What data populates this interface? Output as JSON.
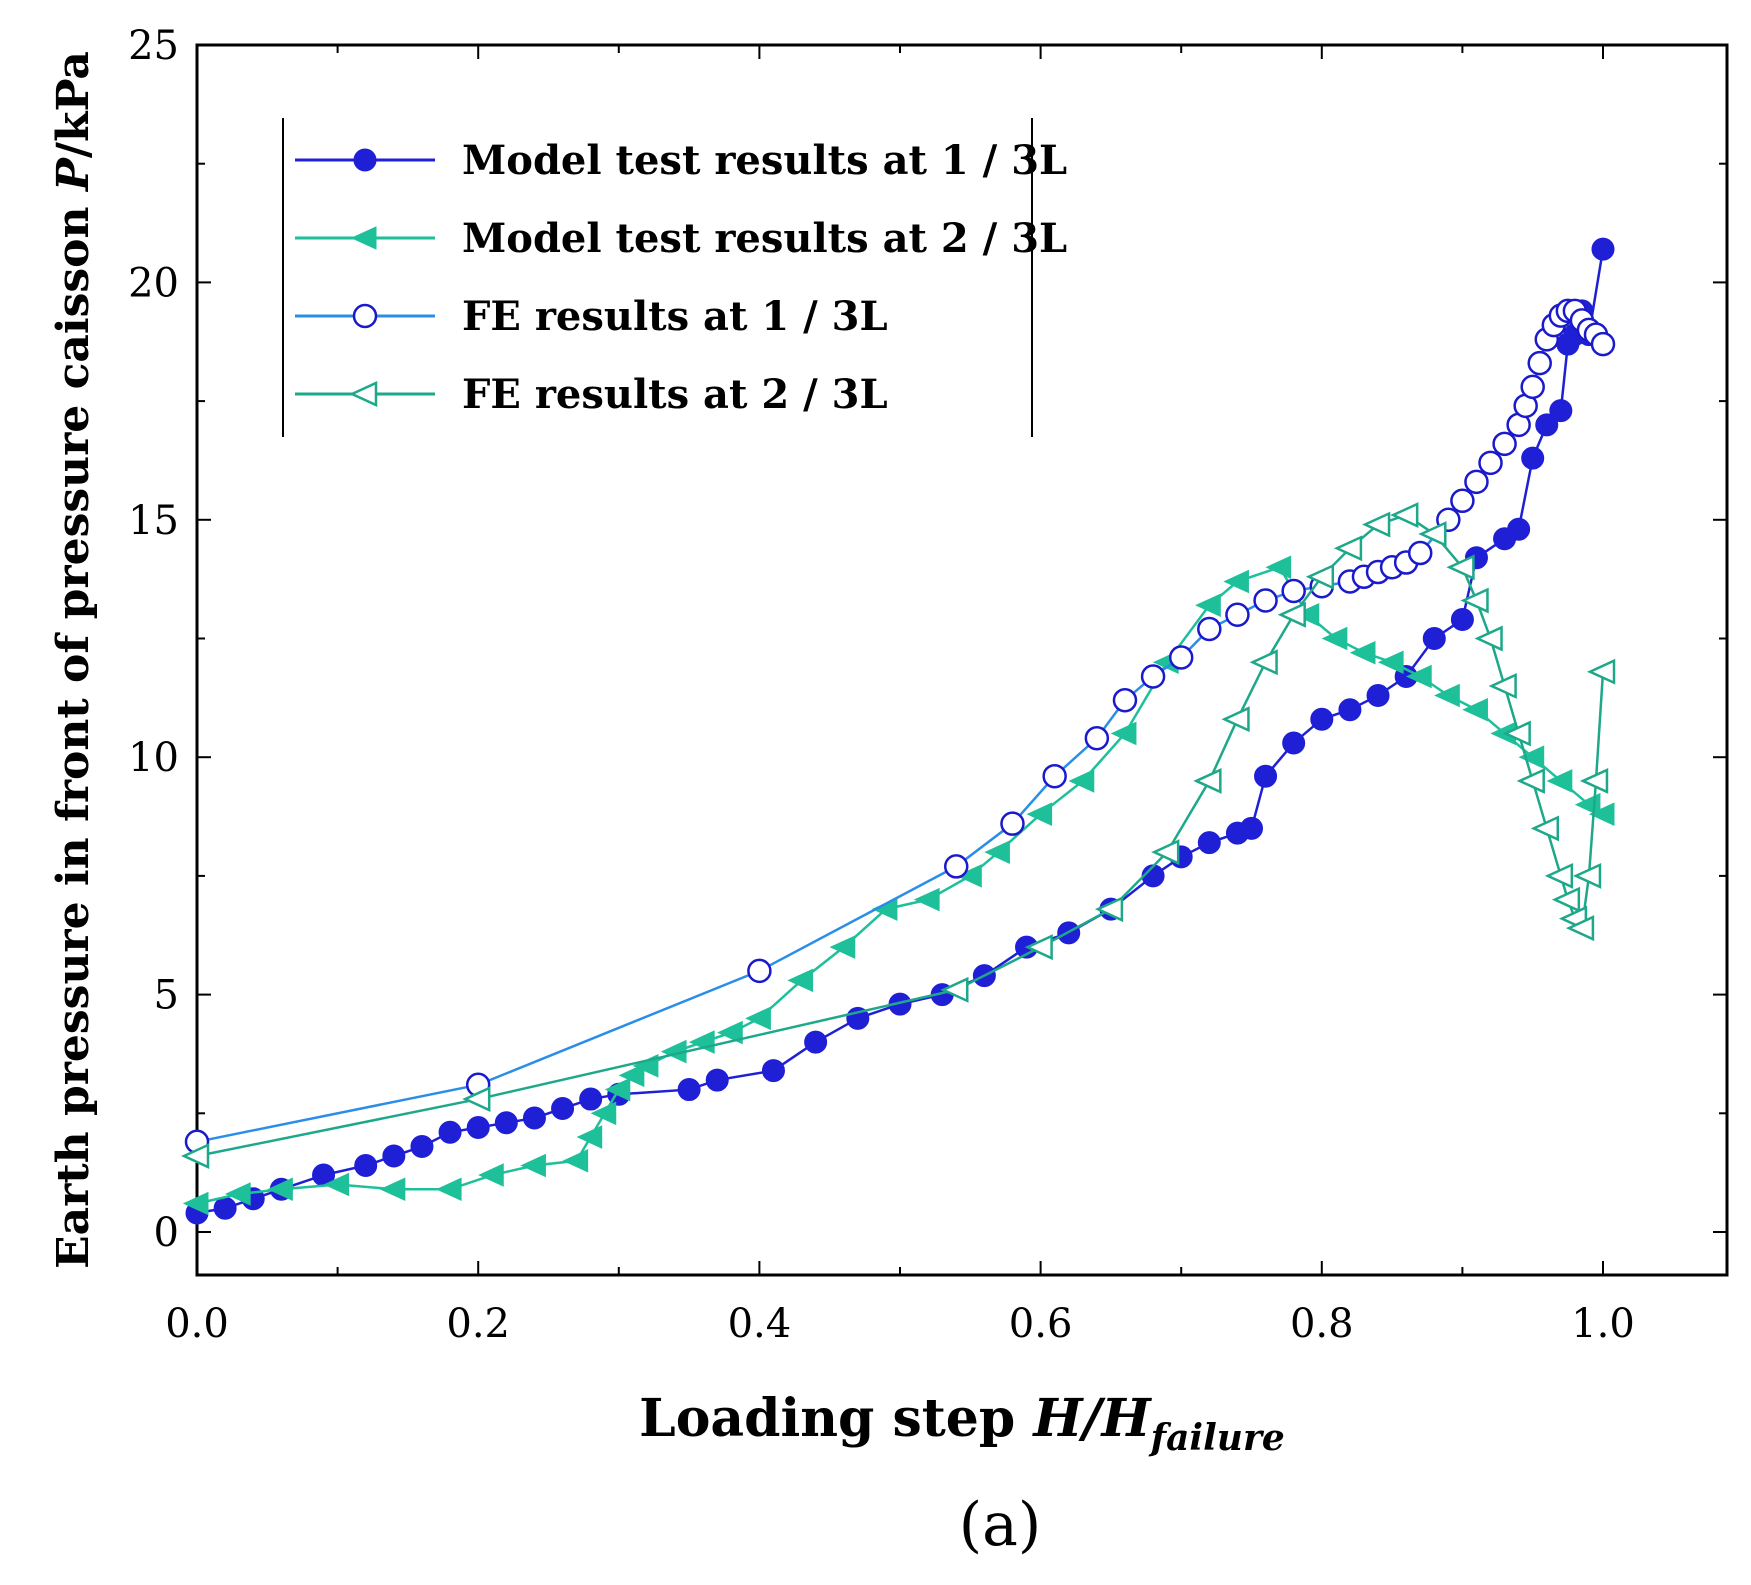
{
  "chart_data": {
    "type": "line",
    "title": "",
    "panel_label": "(a)",
    "xlabel": {
      "prefix": "Loading step ",
      "var": "H/H",
      "sub": "failure"
    },
    "ylabel": {
      "prefix": "Earth pressure in front of pressure caisson  ",
      "var": "P",
      "suffix": "/kPa"
    },
    "xlim": [
      0.0,
      1.1
    ],
    "ylim": [
      -1,
      25
    ],
    "xticks": [
      0.0,
      0.2,
      0.4,
      0.6,
      0.8,
      1.0
    ],
    "xtick_labels": [
      "0.0",
      "0.2",
      "0.4",
      "0.6",
      "0.8",
      "1.0"
    ],
    "yticks": [
      0,
      5,
      10,
      15,
      20,
      25
    ],
    "ytick_labels": [
      "0",
      "5",
      "10",
      "15",
      "20",
      "25"
    ],
    "grid": false,
    "legend_position": "top-left",
    "series": [
      {
        "name": "Model test results at 1 / 3L",
        "color": "#1f1fd6",
        "marker": "circle-filled",
        "x": [
          0.0,
          0.02,
          0.04,
          0.06,
          0.09,
          0.12,
          0.14,
          0.16,
          0.18,
          0.2,
          0.22,
          0.24,
          0.26,
          0.28,
          0.3,
          0.35,
          0.37,
          0.41,
          0.44,
          0.47,
          0.5,
          0.53,
          0.56,
          0.59,
          0.62,
          0.65,
          0.68,
          0.7,
          0.72,
          0.74,
          0.75,
          0.76,
          0.78,
          0.8,
          0.82,
          0.84,
          0.86,
          0.88,
          0.9,
          0.91,
          0.93,
          0.94,
          0.95,
          0.96,
          0.97,
          0.975,
          0.98,
          0.985,
          0.99,
          1.0
        ],
        "y": [
          0.4,
          0.5,
          0.7,
          0.9,
          1.2,
          1.4,
          1.6,
          1.8,
          2.1,
          2.2,
          2.3,
          2.4,
          2.6,
          2.8,
          2.9,
          3.0,
          3.2,
          3.4,
          4.0,
          4.5,
          4.8,
          5.0,
          5.4,
          6.0,
          6.3,
          6.8,
          7.5,
          7.9,
          8.2,
          8.4,
          8.5,
          9.6,
          10.3,
          10.8,
          11.0,
          11.3,
          11.7,
          12.5,
          12.9,
          14.2,
          14.6,
          14.8,
          16.3,
          17.0,
          17.3,
          18.7,
          18.9,
          19.4,
          18.9,
          20.7
        ]
      },
      {
        "name": "Model test results at 2 / 3L",
        "color": "#1ec09a",
        "marker": "triangle-left-filled",
        "x": [
          0.0,
          0.03,
          0.06,
          0.1,
          0.14,
          0.18,
          0.21,
          0.24,
          0.27,
          0.28,
          0.29,
          0.3,
          0.31,
          0.32,
          0.34,
          0.36,
          0.38,
          0.4,
          0.43,
          0.46,
          0.49,
          0.52,
          0.55,
          0.57,
          0.6,
          0.63,
          0.66,
          0.69,
          0.72,
          0.74,
          0.77,
          0.79,
          0.81,
          0.83,
          0.85,
          0.87,
          0.89,
          0.91,
          0.93,
          0.95,
          0.97,
          0.99,
          1.0
        ],
        "y": [
          0.6,
          0.8,
          0.9,
          1.0,
          0.9,
          0.9,
          1.2,
          1.4,
          1.5,
          2.0,
          2.5,
          3.0,
          3.3,
          3.5,
          3.8,
          4.0,
          4.2,
          4.5,
          5.3,
          6.0,
          6.8,
          7.0,
          7.5,
          8.0,
          8.8,
          9.5,
          10.5,
          12.0,
          13.2,
          13.7,
          14.0,
          13.0,
          12.5,
          12.2,
          12.0,
          11.7,
          11.3,
          11.0,
          10.5,
          10.0,
          9.5,
          9.0,
          8.8
        ]
      },
      {
        "name": "FE  results at 1 / 3L",
        "color": "#2a8ee8",
        "marker": "circle-open",
        "marker_color": "#1a1acc",
        "x": [
          0.0,
          0.2,
          0.4,
          0.54,
          0.58,
          0.61,
          0.64,
          0.66,
          0.68,
          0.7,
          0.72,
          0.74,
          0.76,
          0.78,
          0.8,
          0.82,
          0.83,
          0.84,
          0.85,
          0.86,
          0.87,
          0.89,
          0.9,
          0.91,
          0.92,
          0.93,
          0.94,
          0.945,
          0.95,
          0.955,
          0.96,
          0.965,
          0.97,
          0.975,
          0.98,
          0.985,
          0.99,
          0.995,
          1.0
        ],
        "y": [
          1.9,
          3.1,
          5.5,
          7.7,
          8.6,
          9.6,
          10.4,
          11.2,
          11.7,
          12.1,
          12.7,
          13.0,
          13.3,
          13.5,
          13.6,
          13.7,
          13.8,
          13.9,
          14.0,
          14.1,
          14.3,
          15.0,
          15.4,
          15.8,
          16.2,
          16.6,
          17.0,
          17.4,
          17.8,
          18.3,
          18.8,
          19.1,
          19.3,
          19.4,
          19.4,
          19.2,
          19.0,
          18.9,
          18.7
        ]
      },
      {
        "name": "FE  results at 2 / 3L",
        "color": "#1ea88a",
        "marker": "triangle-left-open",
        "x": [
          0.0,
          0.2,
          0.54,
          0.6,
          0.65,
          0.69,
          0.72,
          0.74,
          0.76,
          0.78,
          0.8,
          0.82,
          0.84,
          0.86,
          0.88,
          0.9,
          0.91,
          0.92,
          0.93,
          0.94,
          0.95,
          0.96,
          0.97,
          0.975,
          0.98,
          0.985,
          0.99,
          0.995,
          1.0
        ],
        "y": [
          1.6,
          2.8,
          5.1,
          6.0,
          6.8,
          8.0,
          9.5,
          10.8,
          12.0,
          13.0,
          13.8,
          14.4,
          14.9,
          15.1,
          14.7,
          14.0,
          13.3,
          12.5,
          11.5,
          10.5,
          9.5,
          8.5,
          7.5,
          7.0,
          6.6,
          6.4,
          7.5,
          9.5,
          11.8
        ]
      }
    ]
  }
}
